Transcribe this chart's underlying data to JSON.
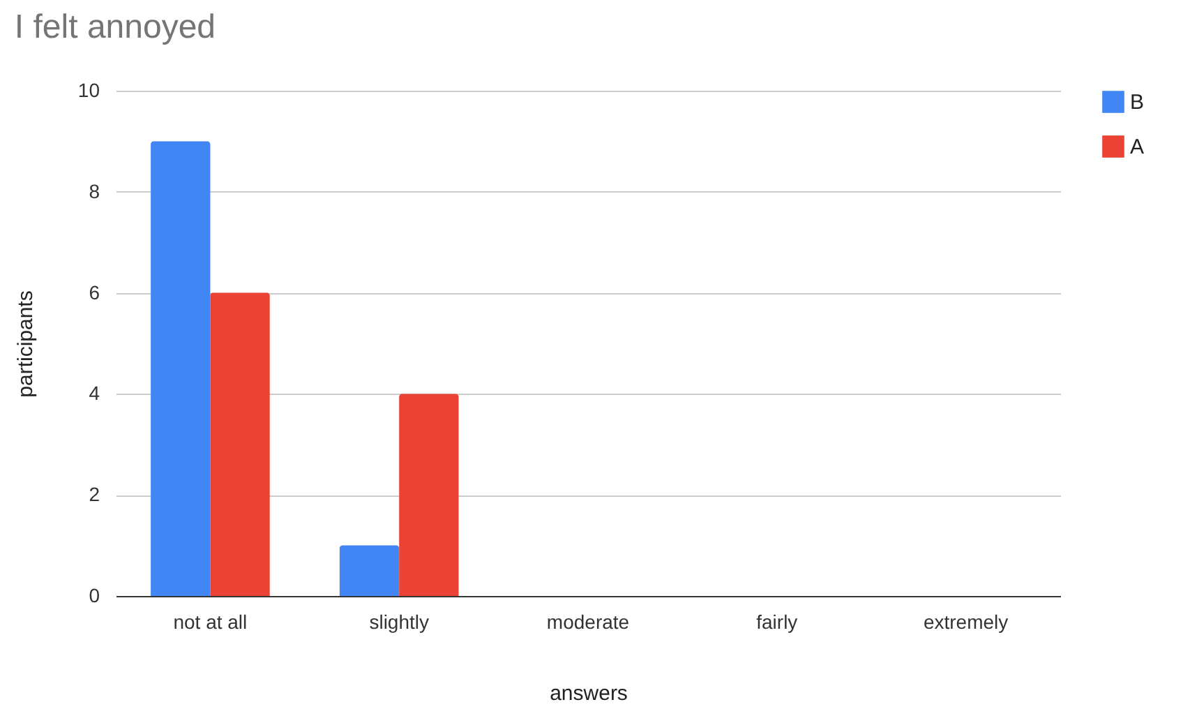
{
  "chart_data": {
    "type": "bar",
    "title": "I felt annoyed",
    "xlabel": "answers",
    "ylabel": "participants",
    "categories": [
      "not at all",
      "slightly",
      "moderate",
      "fairly",
      "extremely"
    ],
    "series": [
      {
        "name": "B",
        "color": "#4285f4",
        "values": [
          9,
          1,
          0,
          0,
          0
        ]
      },
      {
        "name": "A",
        "color": "#ea4335",
        "values": [
          6,
          4,
          0,
          0,
          0
        ]
      }
    ],
    "ylim": [
      0,
      10
    ],
    "yticks": [
      0,
      2,
      4,
      6,
      8,
      10
    ],
    "grid": "y",
    "legend": "top right"
  }
}
